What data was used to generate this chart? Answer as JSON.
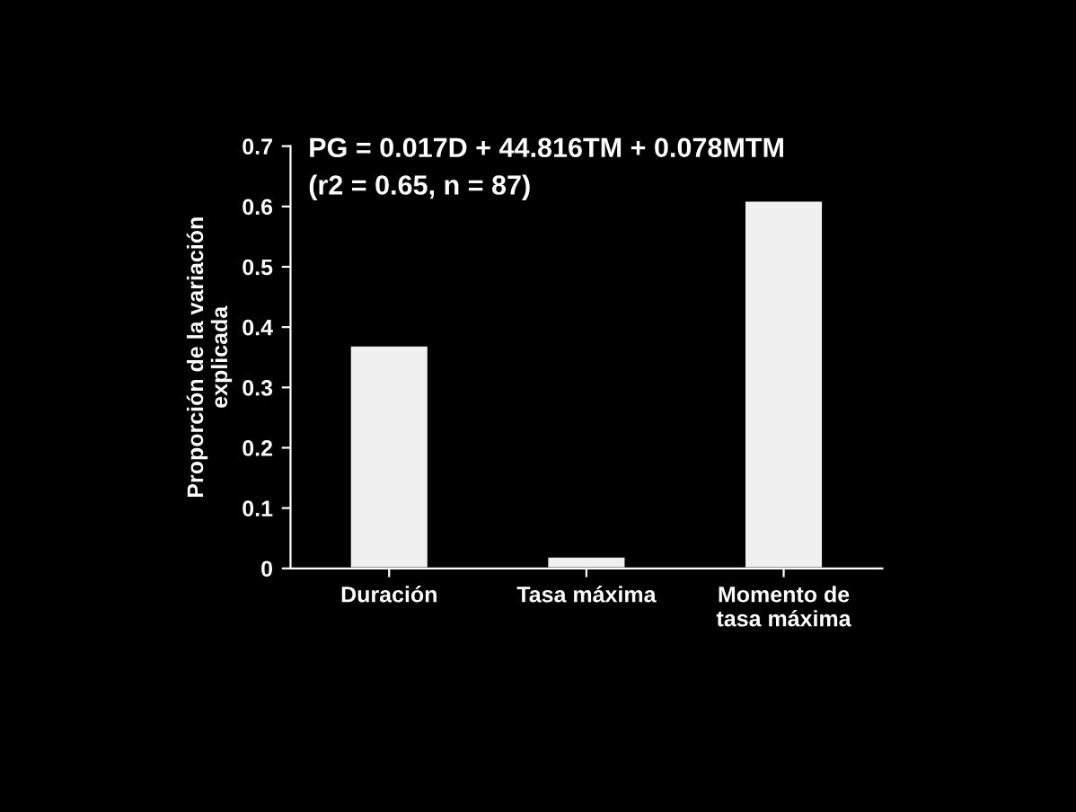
{
  "chart_data": {
    "type": "bar",
    "title": "PG = 0.017D + 44.816TM + 0.078MTM\n(r2 = 0.65, n = 87)",
    "ylabel": "Proporción de la variación\nexplicada",
    "categories": [
      "Duración",
      "Tasa máxima",
      "Momento de\ntasa máxima"
    ],
    "values": [
      0.37,
      0.02,
      0.61
    ],
    "color": "#f0f0f0",
    "ylim": [
      0,
      0.7
    ],
    "yticks": [
      0,
      0.1,
      0.2,
      0.3,
      0.4,
      0.5,
      0.6,
      0.7
    ],
    "grid": false
  }
}
